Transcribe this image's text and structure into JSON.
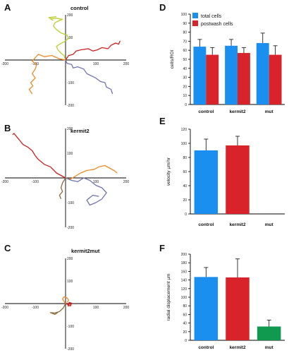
{
  "panels": {
    "A": {
      "letter": "A",
      "label": "control"
    },
    "B": {
      "letter": "B",
      "label": "kermit2"
    },
    "C": {
      "letter": "C",
      "label": "kermit2mut"
    },
    "D": {
      "letter": "D"
    },
    "E": {
      "letter": "E"
    },
    "F": {
      "letter": "F"
    }
  },
  "colors": {
    "blue": "#1a8ff0",
    "red": "#d8232a",
    "green": "#0f9a50",
    "track_yellow": "#b9cf2a",
    "track_red": "#cc1f1f",
    "track_orange": "#f08a24",
    "track_slate": "#6f74ad",
    "track_brown": "#8c6a3c"
  },
  "chart_data": [
    {
      "type": "line",
      "panel": "A",
      "title": "control",
      "xlim": [
        -200,
        200
      ],
      "ylim": [
        -200,
        200
      ],
      "xticks": [
        -200,
        -100,
        100,
        200
      ],
      "yticks": [
        200,
        100,
        -100,
        -200
      ],
      "series": [
        {
          "color": "#b9cf2a",
          "points": [
            [
              0,
              0
            ],
            [
              -5,
              20
            ],
            [
              -15,
              30
            ],
            [
              -25,
              45
            ],
            [
              -30,
              60
            ],
            [
              -20,
              70
            ],
            [
              -5,
              80
            ],
            [
              10,
              95
            ],
            [
              5,
              110
            ],
            [
              -15,
              120
            ],
            [
              -30,
              135
            ],
            [
              -40,
              150
            ],
            [
              -35,
              165
            ],
            [
              -20,
              175
            ],
            [
              -10,
              180
            ],
            [
              -30,
              185
            ],
            [
              -50,
              183
            ],
            [
              -42,
              176
            ],
            [
              -55,
              188
            ],
            [
              -30,
              192
            ]
          ]
        },
        {
          "color": "#cc1f1f",
          "points": [
            [
              0,
              0
            ],
            [
              10,
              20
            ],
            [
              25,
              25
            ],
            [
              35,
              40
            ],
            [
              50,
              45
            ],
            [
              75,
              50
            ],
            [
              90,
              40
            ],
            [
              105,
              45
            ],
            [
              120,
              55
            ],
            [
              140,
              50
            ],
            [
              150,
              65
            ],
            [
              165,
              75
            ],
            [
              175,
              70
            ],
            [
              180,
              85
            ]
          ]
        },
        {
          "color": "#f08a24",
          "points": [
            [
              0,
              0
            ],
            [
              -20,
              5
            ],
            [
              -45,
              20
            ],
            [
              -70,
              15
            ],
            [
              -90,
              25
            ],
            [
              -100,
              10
            ],
            [
              -110,
              -5
            ],
            [
              -95,
              -20
            ],
            [
              -100,
              -40
            ],
            [
              -110,
              -60
            ],
            [
              -100,
              -80
            ],
            [
              -115,
              -100
            ],
            [
              -108,
              -115
            ],
            [
              -120,
              -130
            ],
            [
              -110,
              -150
            ]
          ]
        },
        {
          "color": "#6f74ad",
          "points": [
            [
              0,
              0
            ],
            [
              5,
              -15
            ],
            [
              20,
              -20
            ],
            [
              25,
              -35
            ],
            [
              40,
              -30
            ],
            [
              60,
              -40
            ],
            [
              70,
              -60
            ],
            [
              85,
              -70
            ],
            [
              100,
              -80
            ],
            [
              115,
              -95
            ],
            [
              130,
              -100
            ],
            [
              135,
              -120
            ],
            [
              150,
              -130
            ],
            [
              155,
              -150
            ]
          ]
        }
      ]
    },
    {
      "type": "line",
      "panel": "B",
      "title": "kermit2",
      "xlim": [
        -200,
        200
      ],
      "ylim": [
        -200,
        200
      ],
      "xticks": [
        -200,
        -100,
        100,
        200
      ],
      "yticks": [
        200,
        100,
        -100,
        -200
      ],
      "series": [
        {
          "color": "#cc1f1f",
          "points": [
            [
              0,
              0
            ],
            [
              -15,
              10
            ],
            [
              -30,
              20
            ],
            [
              -50,
              45
            ],
            [
              -70,
              55
            ],
            [
              -90,
              75
            ],
            [
              -100,
              90
            ],
            [
              -110,
              110
            ],
            [
              -125,
              125
            ],
            [
              -140,
              135
            ],
            [
              -150,
              150
            ],
            [
              -160,
              165
            ],
            [
              -170,
              180
            ],
            [
              -175,
              175
            ]
          ]
        },
        {
          "color": "#f08a24",
          "points": [
            [
              0,
              0
            ],
            [
              15,
              -5
            ],
            [
              30,
              5
            ],
            [
              50,
              20
            ],
            [
              70,
              30
            ],
            [
              95,
              35
            ],
            [
              110,
              45
            ],
            [
              130,
              50
            ],
            [
              145,
              40
            ],
            [
              160,
              30
            ],
            [
              170,
              20
            ]
          ]
        },
        {
          "color": "#6f74ad",
          "points": [
            [
              0,
              0
            ],
            [
              20,
              -10
            ],
            [
              40,
              -15
            ],
            [
              60,
              0
            ],
            [
              80,
              -10
            ],
            [
              100,
              -30
            ],
            [
              120,
              -40
            ],
            [
              135,
              -60
            ],
            [
              120,
              -85
            ],
            [
              100,
              -100
            ],
            [
              80,
              -110
            ],
            [
              70,
              -90
            ],
            [
              90,
              -70
            ],
            [
              110,
              -75
            ]
          ]
        },
        {
          "color": "#8c6a3c",
          "points": [
            [
              0,
              0
            ],
            [
              -10,
              -20
            ],
            [
              -15,
              -40
            ],
            [
              -10,
              -55
            ],
            [
              -20,
              -70
            ],
            [
              -15,
              -85
            ]
          ]
        }
      ]
    },
    {
      "type": "line",
      "panel": "C",
      "title": "kermit2mut",
      "xlim": [
        -200,
        200
      ],
      "ylim": [
        -200,
        200
      ],
      "xticks": [
        -200,
        -100,
        100,
        200
      ],
      "yticks": [
        200,
        100,
        -100,
        -200
      ],
      "series": [
        {
          "color": "#f08a24",
          "points": [
            [
              0,
              0
            ],
            [
              -5,
              10
            ],
            [
              -10,
              20
            ],
            [
              -5,
              30
            ],
            [
              5,
              25
            ],
            [
              10,
              15
            ],
            [
              5,
              5
            ]
          ]
        },
        {
          "color": "#cc1f1f",
          "points": [
            [
              0,
              0
            ],
            [
              10,
              -5
            ],
            [
              15,
              0
            ],
            [
              18,
              -8
            ],
            [
              8,
              -10
            ],
            [
              12,
              5
            ],
            [
              20,
              2
            ],
            [
              15,
              -12
            ]
          ]
        },
        {
          "color": "#8c6a3c",
          "points": [
            [
              0,
              0
            ],
            [
              -8,
              -20
            ],
            [
              -20,
              -35
            ],
            [
              -35,
              -42
            ],
            [
              -50,
              -40
            ],
            [
              -35,
              -48
            ],
            [
              -25,
              -38
            ]
          ]
        }
      ]
    },
    {
      "type": "bar",
      "panel": "D",
      "categories": [
        "control",
        "kermit2",
        "mut"
      ],
      "ylabel": "cells/ROI",
      "ylim": [
        0,
        100
      ],
      "yticks": [
        0,
        10,
        20,
        30,
        40,
        50,
        60,
        70,
        80,
        90,
        100
      ],
      "legend": "top-left",
      "series": [
        {
          "name": "total cells",
          "color": "#1a8ff0",
          "values": [
            64,
            65,
            68
          ],
          "errors": [
            8,
            7,
            11
          ]
        },
        {
          "name": "postwash cells",
          "color": "#d8232a",
          "values": [
            55,
            57,
            55
          ],
          "errors": [
            8,
            6,
            10
          ]
        }
      ]
    },
    {
      "type": "bar",
      "panel": "E",
      "categories": [
        "control",
        "kermit2",
        "mut"
      ],
      "ylabel": "velocity µm/hr",
      "ylim": [
        0,
        120
      ],
      "yticks": [
        0,
        20,
        40,
        60,
        80,
        100,
        120
      ],
      "series": [
        {
          "colors": [
            "#1a8ff0",
            "#d8232a"
          ],
          "values": [
            90,
            97,
            null
          ],
          "errors": [
            16,
            13,
            null
          ]
        }
      ]
    },
    {
      "type": "bar",
      "panel": "F",
      "categories": [
        "control",
        "kermit2",
        "mut"
      ],
      "ylabel": "radial displacement µm",
      "ylim": [
        0,
        200
      ],
      "yticks": [
        0,
        20,
        40,
        60,
        80,
        100,
        120,
        140,
        160,
        180,
        200
      ],
      "series": [
        {
          "colors": [
            "#1a8ff0",
            "#d8232a",
            "#0f9a50"
          ],
          "values": [
            147,
            146,
            32
          ],
          "errors": [
            22,
            43,
            15
          ]
        }
      ]
    }
  ]
}
